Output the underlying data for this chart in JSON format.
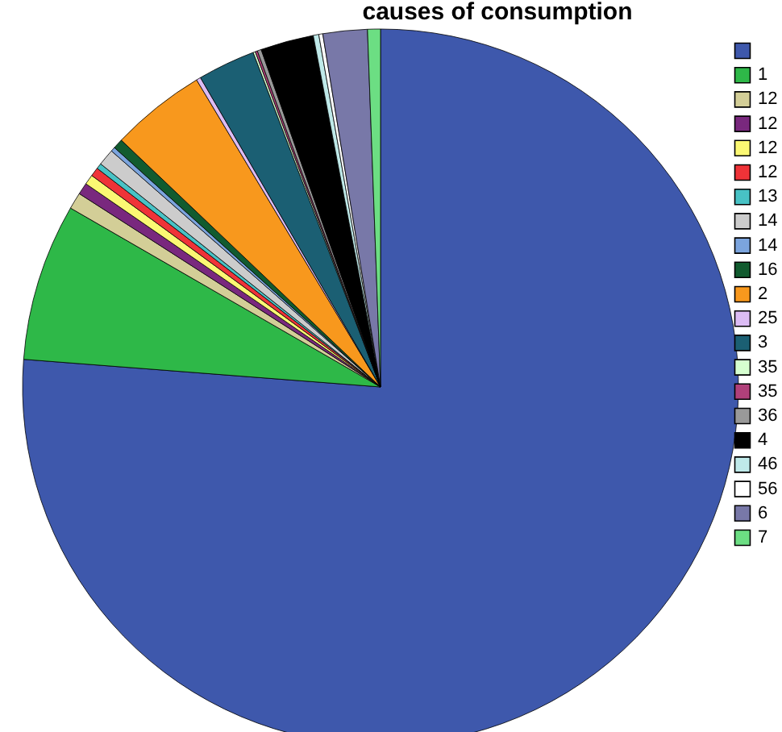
{
  "chart_data": {
    "type": "pie",
    "title": "causes of consumption",
    "categories": [
      null,
      "1",
      "12",
      "12",
      "12",
      "12",
      "13",
      "14",
      "14",
      "16",
      "2",
      "25",
      "3",
      "35",
      "35",
      "36",
      "4",
      "46",
      "56",
      "6",
      "7"
    ],
    "values": [
      76.23,
      7.1,
      0.75,
      0.53,
      0.45,
      0.4,
      0.25,
      0.75,
      0.2,
      0.45,
      4.3,
      0.2,
      2.6,
      0.1,
      0.1,
      0.18,
      2.4,
      0.25,
      0.18,
      2.0,
      0.58
    ],
    "colors": [
      "#3e58ac",
      "#2eb848",
      "#d3ce97",
      "#79287e",
      "#fbf873",
      "#ef3338",
      "#48c2c5",
      "#cccccc",
      "#7ba4dd",
      "#115b2f",
      "#f8981d",
      "#dcbcf4",
      "#1b5f73",
      "#d6ffd0",
      "#b0407a",
      "#999999",
      "#000000",
      "#bfe9e9",
      "#ffffff",
      "#7878a8",
      "#6cde83"
    ],
    "legend": "top right"
  }
}
